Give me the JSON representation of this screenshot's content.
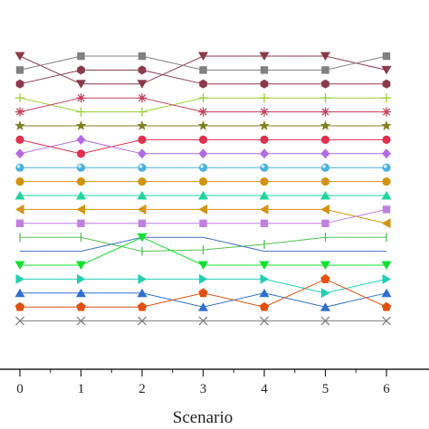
{
  "chart_data": {
    "type": "line",
    "xlabel": "Scenario",
    "ylabel": "",
    "title": "",
    "x": [
      0,
      1,
      2,
      3,
      4,
      5,
      6
    ],
    "xlim": [
      -0.3,
      6.3
    ],
    "y_axis_visible": false,
    "legend": "none",
    "grid": false,
    "series": [
      {
        "marker": "triangle-down",
        "color": "#8B3A4A",
        "values": [
          1,
          3,
          3,
          1,
          1,
          1,
          2
        ]
      },
      {
        "marker": "square",
        "color": "#808080",
        "values": [
          2,
          1,
          1,
          2,
          2,
          2,
          1
        ]
      },
      {
        "marker": "hexagon",
        "color": "#8B3A4A",
        "values": [
          3,
          2,
          2,
          3,
          3,
          3,
          3
        ]
      },
      {
        "marker": "plus",
        "color": "#9ACD32",
        "values": [
          4,
          5,
          5,
          4,
          4,
          4,
          4
        ]
      },
      {
        "marker": "asterisk",
        "color": "#C0405A",
        "values": [
          5,
          4,
          4,
          5,
          5,
          5,
          5
        ]
      },
      {
        "marker": "star",
        "color": "#808020",
        "values": [
          6,
          6,
          6,
          6,
          6,
          6,
          6
        ]
      },
      {
        "marker": "circle",
        "color": "#E0304E",
        "values": [
          7,
          8,
          7,
          7,
          7,
          7,
          7
        ]
      },
      {
        "marker": "diamond",
        "color": "#B36AE2",
        "values": [
          8,
          7,
          8,
          8,
          8,
          8,
          8
        ]
      },
      {
        "marker": "sphere",
        "color": "#4AB0E0",
        "values": [
          9,
          9,
          9,
          9,
          9,
          9,
          9
        ]
      },
      {
        "marker": "circle",
        "color": "#D4930D",
        "values": [
          10,
          10,
          10,
          10,
          10,
          10,
          10
        ]
      },
      {
        "marker": "triangle-up",
        "color": "#20D4A0",
        "values": [
          11,
          11,
          11,
          11,
          11,
          11,
          11
        ]
      },
      {
        "marker": "triangle-left",
        "color": "#D4930D",
        "values": [
          12,
          12,
          12,
          12,
          12,
          12,
          13
        ]
      },
      {
        "marker": "square",
        "color": "#C080E0",
        "values": [
          13,
          13,
          13,
          13,
          13,
          13,
          12
        ]
      },
      {
        "marker": "tick",
        "color": "#50C050",
        "values": [
          14,
          14,
          15,
          14.9,
          14.5,
          14,
          14
        ]
      },
      {
        "marker": "none",
        "color": "#4070C0",
        "values": [
          15,
          15,
          14,
          14,
          15,
          15,
          15
        ]
      },
      {
        "marker": "triangle-down",
        "color": "#10E030",
        "values": [
          16,
          16,
          14,
          16,
          16,
          16,
          16
        ]
      },
      {
        "marker": "triangle-right",
        "color": "#20D0B0",
        "values": [
          17,
          17,
          17,
          17,
          17,
          18,
          17
        ]
      },
      {
        "marker": "triangle-up",
        "color": "#3070D0",
        "values": [
          18,
          18,
          18,
          19,
          18,
          19,
          18
        ]
      },
      {
        "marker": "pentagon",
        "color": "#E05010",
        "values": [
          19,
          19,
          19,
          18,
          19,
          17,
          19
        ]
      },
      {
        "marker": "x",
        "color": "#808080",
        "values": [
          20,
          20,
          20,
          20,
          20,
          20,
          20
        ]
      }
    ]
  }
}
